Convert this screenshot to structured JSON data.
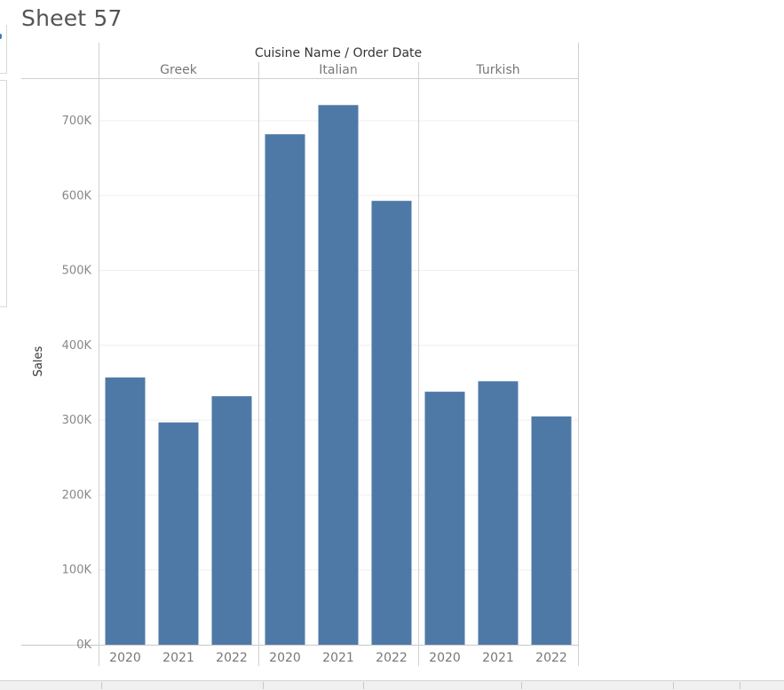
{
  "sheet": {
    "title": "Sheet 57"
  },
  "chart_data": {
    "type": "bar",
    "header_label": "Cuisine Name / Order Date",
    "ylabel": "Sales",
    "ylim": [
      0,
      750000
    ],
    "yticks": [
      0,
      100000,
      200000,
      300000,
      400000,
      500000,
      600000,
      700000
    ],
    "ytick_labels": [
      "0K",
      "100K",
      "200K",
      "300K",
      "400K",
      "500K",
      "600K",
      "700K"
    ],
    "bar_color": "#4e79a7",
    "groups": [
      {
        "name": "Greek",
        "years": [
          "2020",
          "2021",
          "2022"
        ],
        "values": [
          357000,
          297000,
          332000
        ]
      },
      {
        "name": "Italian",
        "years": [
          "2020",
          "2021",
          "2022"
        ],
        "values": [
          682000,
          721000,
          593000
        ]
      },
      {
        "name": "Turkish",
        "years": [
          "2020",
          "2021",
          "2022"
        ],
        "values": [
          338000,
          352000,
          305000
        ]
      }
    ]
  }
}
